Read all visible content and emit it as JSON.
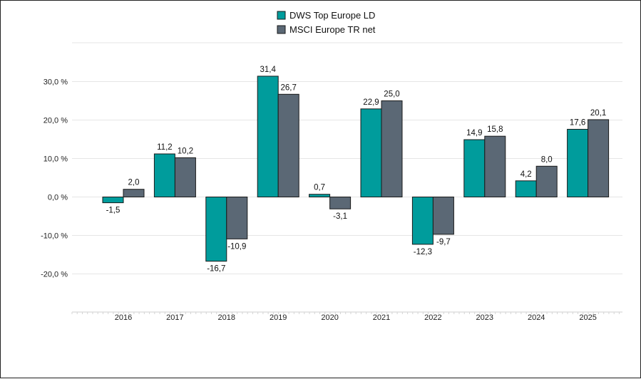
{
  "chart_data": {
    "type": "bar",
    "categories": [
      "2016",
      "2017",
      "2018",
      "2019",
      "2020",
      "2021",
      "2022",
      "2023",
      "2024",
      "2025"
    ],
    "series": [
      {
        "name": "DWS Top Europe LD",
        "color": "#009c9c",
        "values": [
          -1.5,
          11.2,
          -16.7,
          31.4,
          0.7,
          22.9,
          -12.3,
          14.9,
          4.2,
          17.6
        ],
        "labels": [
          "-1,5",
          "11,2",
          "-16,7",
          "31,4",
          "0,7",
          "22,9",
          "-12,3",
          "14,9",
          "4,2",
          "17,6"
        ]
      },
      {
        "name": "MSCI Europe TR net",
        "color": "#5b6875",
        "values": [
          2.0,
          10.2,
          -10.9,
          26.7,
          -3.1,
          25.0,
          -9.7,
          15.8,
          8.0,
          20.1
        ],
        "labels": [
          "2,0",
          "10,2",
          "-10,9",
          "26,7",
          "-3,1",
          "25,0",
          "-9,7",
          "15,8",
          "8,0",
          "20,1"
        ]
      }
    ],
    "yticks": [
      30,
      20,
      10,
      0,
      -10,
      -20
    ],
    "ytick_labels": [
      "30,0 %",
      "20,0 %",
      "10,0 %",
      "0,0 %",
      "-10,0 %",
      "-20,0 %"
    ],
    "ylim": [
      -30,
      40
    ],
    "legend_position": "top-center",
    "grid": true
  }
}
